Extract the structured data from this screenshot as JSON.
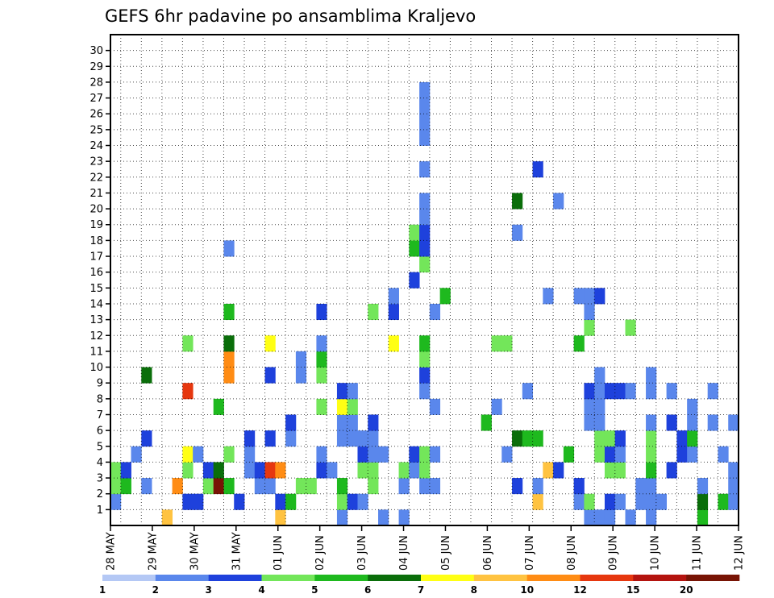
{
  "chart_data": {
    "type": "heatmap",
    "title": "GEFS 6hr padavine po ansamblima Kraljevo",
    "xlabel": "",
    "ylabel": "",
    "x_tick_labels": [
      "28 MAY",
      "29 MAY",
      "30 MAY",
      "31 MAY",
      "01 JUN",
      "02 JUN",
      "03 JUN",
      "04 JUN",
      "05 JUN",
      "06 JUN",
      "07 JUN",
      "08 JUN",
      "09 JUN",
      "10 JUN",
      "11 JUN",
      "12 JUN"
    ],
    "y_tick_labels": [
      "1",
      "2",
      "3",
      "4",
      "5",
      "6",
      "7",
      "8",
      "9",
      "10",
      "11",
      "12",
      "13",
      "14",
      "15",
      "16",
      "17",
      "18",
      "19",
      "20",
      "21",
      "22",
      "23",
      "24",
      "25",
      "26",
      "27",
      "28",
      "29",
      "30"
    ],
    "ensemble_members": [
      0,
      30
    ],
    "time_steps": 61,
    "grid": true,
    "legend": "colorbar-bottom",
    "colorbar": {
      "labels": [
        "1",
        "2",
        "3",
        "4",
        "5",
        "6",
        "7",
        "8",
        "10",
        "12",
        "15",
        "20"
      ],
      "colors": [
        "#b4c8f5",
        "#5a87ec",
        "#1e41dc",
        "#73e65a",
        "#1eb91e",
        "#0a6e0a",
        "#ffff14",
        "#ffc341",
        "#ff8c14",
        "#e6370f",
        "#b4140f",
        "#781405"
      ]
    },
    "cells": [
      [
        0,
        1,
        1
      ],
      [
        0,
        2,
        3
      ],
      [
        0,
        3,
        3
      ],
      [
        1,
        2,
        4
      ],
      [
        1,
        3,
        2
      ],
      [
        2,
        4,
        1
      ],
      [
        3,
        2,
        1
      ],
      [
        3,
        5,
        2
      ],
      [
        3,
        9,
        5
      ],
      [
        5,
        0,
        7
      ],
      [
        6,
        2,
        8
      ],
      [
        7,
        1,
        2
      ],
      [
        7,
        3,
        3
      ],
      [
        7,
        4,
        6
      ],
      [
        7,
        8,
        9
      ],
      [
        7,
        11,
        3
      ],
      [
        8,
        1,
        2
      ],
      [
        8,
        4,
        1
      ],
      [
        9,
        2,
        3
      ],
      [
        9,
        3,
        2
      ],
      [
        10,
        2,
        11
      ],
      [
        10,
        3,
        5
      ],
      [
        10,
        7,
        4
      ],
      [
        11,
        2,
        4
      ],
      [
        11,
        4,
        3
      ],
      [
        11,
        9,
        8
      ],
      [
        11,
        10,
        8
      ],
      [
        11,
        11,
        5
      ],
      [
        11,
        13,
        4
      ],
      [
        11,
        17,
        1
      ],
      [
        12,
        1,
        2
      ],
      [
        13,
        3,
        1
      ],
      [
        13,
        4,
        1
      ],
      [
        13,
        5,
        2
      ],
      [
        14,
        2,
        1
      ],
      [
        14,
        3,
        2
      ],
      [
        15,
        2,
        1
      ],
      [
        15,
        3,
        9
      ],
      [
        15,
        5,
        2
      ],
      [
        15,
        9,
        2
      ],
      [
        15,
        11,
        6
      ],
      [
        16,
        0,
        7
      ],
      [
        16,
        1,
        2
      ],
      [
        16,
        3,
        8
      ],
      [
        17,
        1,
        4
      ],
      [
        17,
        5,
        1
      ],
      [
        17,
        6,
        2
      ],
      [
        18,
        2,
        3
      ],
      [
        18,
        9,
        1
      ],
      [
        18,
        10,
        1
      ],
      [
        19,
        2,
        3
      ],
      [
        20,
        3,
        2
      ],
      [
        20,
        4,
        1
      ],
      [
        20,
        7,
        3
      ],
      [
        20,
        9,
        3
      ],
      [
        20,
        10,
        4
      ],
      [
        20,
        11,
        1
      ],
      [
        20,
        13,
        2
      ],
      [
        21,
        3,
        1
      ],
      [
        22,
        0,
        1
      ],
      [
        22,
        1,
        3
      ],
      [
        22,
        2,
        4
      ],
      [
        22,
        5,
        1
      ],
      [
        22,
        6,
        1
      ],
      [
        22,
        7,
        6
      ],
      [
        22,
        8,
        2
      ],
      [
        23,
        1,
        2
      ],
      [
        23,
        5,
        1
      ],
      [
        23,
        6,
        1
      ],
      [
        23,
        7,
        3
      ],
      [
        23,
        8,
        1
      ],
      [
        24,
        1,
        1
      ],
      [
        24,
        3,
        3
      ],
      [
        24,
        4,
        2
      ],
      [
        24,
        5,
        1
      ],
      [
        25,
        2,
        3
      ],
      [
        25,
        3,
        3
      ],
      [
        25,
        4,
        1
      ],
      [
        25,
        5,
        1
      ],
      [
        25,
        6,
        2
      ],
      [
        25,
        13,
        3
      ],
      [
        26,
        0,
        1
      ],
      [
        26,
        4,
        1
      ],
      [
        27,
        11,
        6
      ],
      [
        27,
        13,
        2
      ],
      [
        27,
        14,
        1
      ],
      [
        28,
        0,
        1
      ],
      [
        28,
        2,
        1
      ],
      [
        28,
        3,
        3
      ],
      [
        29,
        3,
        1
      ],
      [
        29,
        4,
        2
      ],
      [
        29,
        15,
        2
      ],
      [
        29,
        17,
        4
      ],
      [
        29,
        18,
        3
      ],
      [
        30,
        2,
        1
      ],
      [
        30,
        3,
        3
      ],
      [
        30,
        4,
        3
      ],
      [
        30,
        8,
        1
      ],
      [
        30,
        9,
        2
      ],
      [
        30,
        10,
        3
      ],
      [
        30,
        11,
        4
      ],
      [
        30,
        16,
        3
      ],
      [
        30,
        17,
        2
      ],
      [
        30,
        18,
        2
      ],
      [
        30,
        19,
        1
      ],
      [
        30,
        20,
        1
      ],
      [
        30,
        22,
        1
      ],
      [
        30,
        24,
        1
      ],
      [
        30,
        25,
        1
      ],
      [
        30,
        26,
        1
      ],
      [
        30,
        27,
        1
      ],
      [
        31,
        2,
        1
      ],
      [
        31,
        4,
        1
      ],
      [
        31,
        7,
        1
      ],
      [
        31,
        13,
        1
      ],
      [
        32,
        14,
        4
      ],
      [
        36,
        6,
        4
      ],
      [
        37,
        7,
        1
      ],
      [
        37,
        11,
        3
      ],
      [
        38,
        4,
        1
      ],
      [
        38,
        11,
        3
      ],
      [
        39,
        2,
        2
      ],
      [
        39,
        5,
        5
      ],
      [
        39,
        18,
        1
      ],
      [
        39,
        20,
        5
      ],
      [
        40,
        5,
        4
      ],
      [
        40,
        8,
        1
      ],
      [
        41,
        1,
        7
      ],
      [
        41,
        2,
        1
      ],
      [
        41,
        5,
        4
      ],
      [
        41,
        22,
        2
      ],
      [
        42,
        3,
        7
      ],
      [
        42,
        14,
        1
      ],
      [
        43,
        3,
        2
      ],
      [
        43,
        20,
        1
      ],
      [
        44,
        4,
        4
      ],
      [
        45,
        1,
        1
      ],
      [
        45,
        2,
        2
      ],
      [
        45,
        11,
        4
      ],
      [
        45,
        14,
        1
      ],
      [
        46,
        0,
        1
      ],
      [
        46,
        1,
        3
      ],
      [
        46,
        6,
        1
      ],
      [
        46,
        7,
        1
      ],
      [
        46,
        8,
        2
      ],
      [
        46,
        12,
        3
      ],
      [
        46,
        13,
        1
      ],
      [
        46,
        14,
        1
      ],
      [
        47,
        0,
        1
      ],
      [
        47,
        4,
        3
      ],
      [
        47,
        5,
        3
      ],
      [
        47,
        6,
        1
      ],
      [
        47,
        7,
        1
      ],
      [
        47,
        8,
        1
      ],
      [
        47,
        9,
        1
      ],
      [
        47,
        14,
        2
      ],
      [
        48,
        0,
        1
      ],
      [
        48,
        1,
        2
      ],
      [
        48,
        3,
        3
      ],
      [
        48,
        4,
        2
      ],
      [
        48,
        5,
        3
      ],
      [
        48,
        8,
        2
      ],
      [
        49,
        1,
        1
      ],
      [
        49,
        3,
        3
      ],
      [
        49,
        4,
        1
      ],
      [
        49,
        5,
        2
      ],
      [
        49,
        8,
        2
      ],
      [
        50,
        0,
        1
      ],
      [
        50,
        8,
        1
      ],
      [
        50,
        12,
        3
      ],
      [
        51,
        1,
        1
      ],
      [
        51,
        2,
        1
      ],
      [
        52,
        0,
        1
      ],
      [
        52,
        1,
        1
      ],
      [
        52,
        2,
        1
      ],
      [
        52,
        3,
        4
      ],
      [
        52,
        4,
        3
      ],
      [
        52,
        5,
        3
      ],
      [
        52,
        6,
        1
      ],
      [
        52,
        8,
        1
      ],
      [
        52,
        9,
        1
      ],
      [
        53,
        1,
        1
      ],
      [
        54,
        3,
        2
      ],
      [
        54,
        6,
        2
      ],
      [
        54,
        8,
        1
      ],
      [
        55,
        4,
        2
      ],
      [
        55,
        5,
        2
      ],
      [
        56,
        4,
        1
      ],
      [
        56,
        5,
        4
      ],
      [
        56,
        6,
        1
      ],
      [
        56,
        7,
        1
      ],
      [
        57,
        0,
        4
      ],
      [
        57,
        1,
        5
      ],
      [
        57,
        2,
        1
      ],
      [
        58,
        6,
        1
      ],
      [
        58,
        8,
        1
      ],
      [
        59,
        1,
        4
      ],
      [
        59,
        4,
        1
      ],
      [
        60,
        1,
        1
      ],
      [
        60,
        2,
        1
      ],
      [
        60,
        3,
        1
      ],
      [
        60,
        6,
        1
      ]
    ]
  }
}
